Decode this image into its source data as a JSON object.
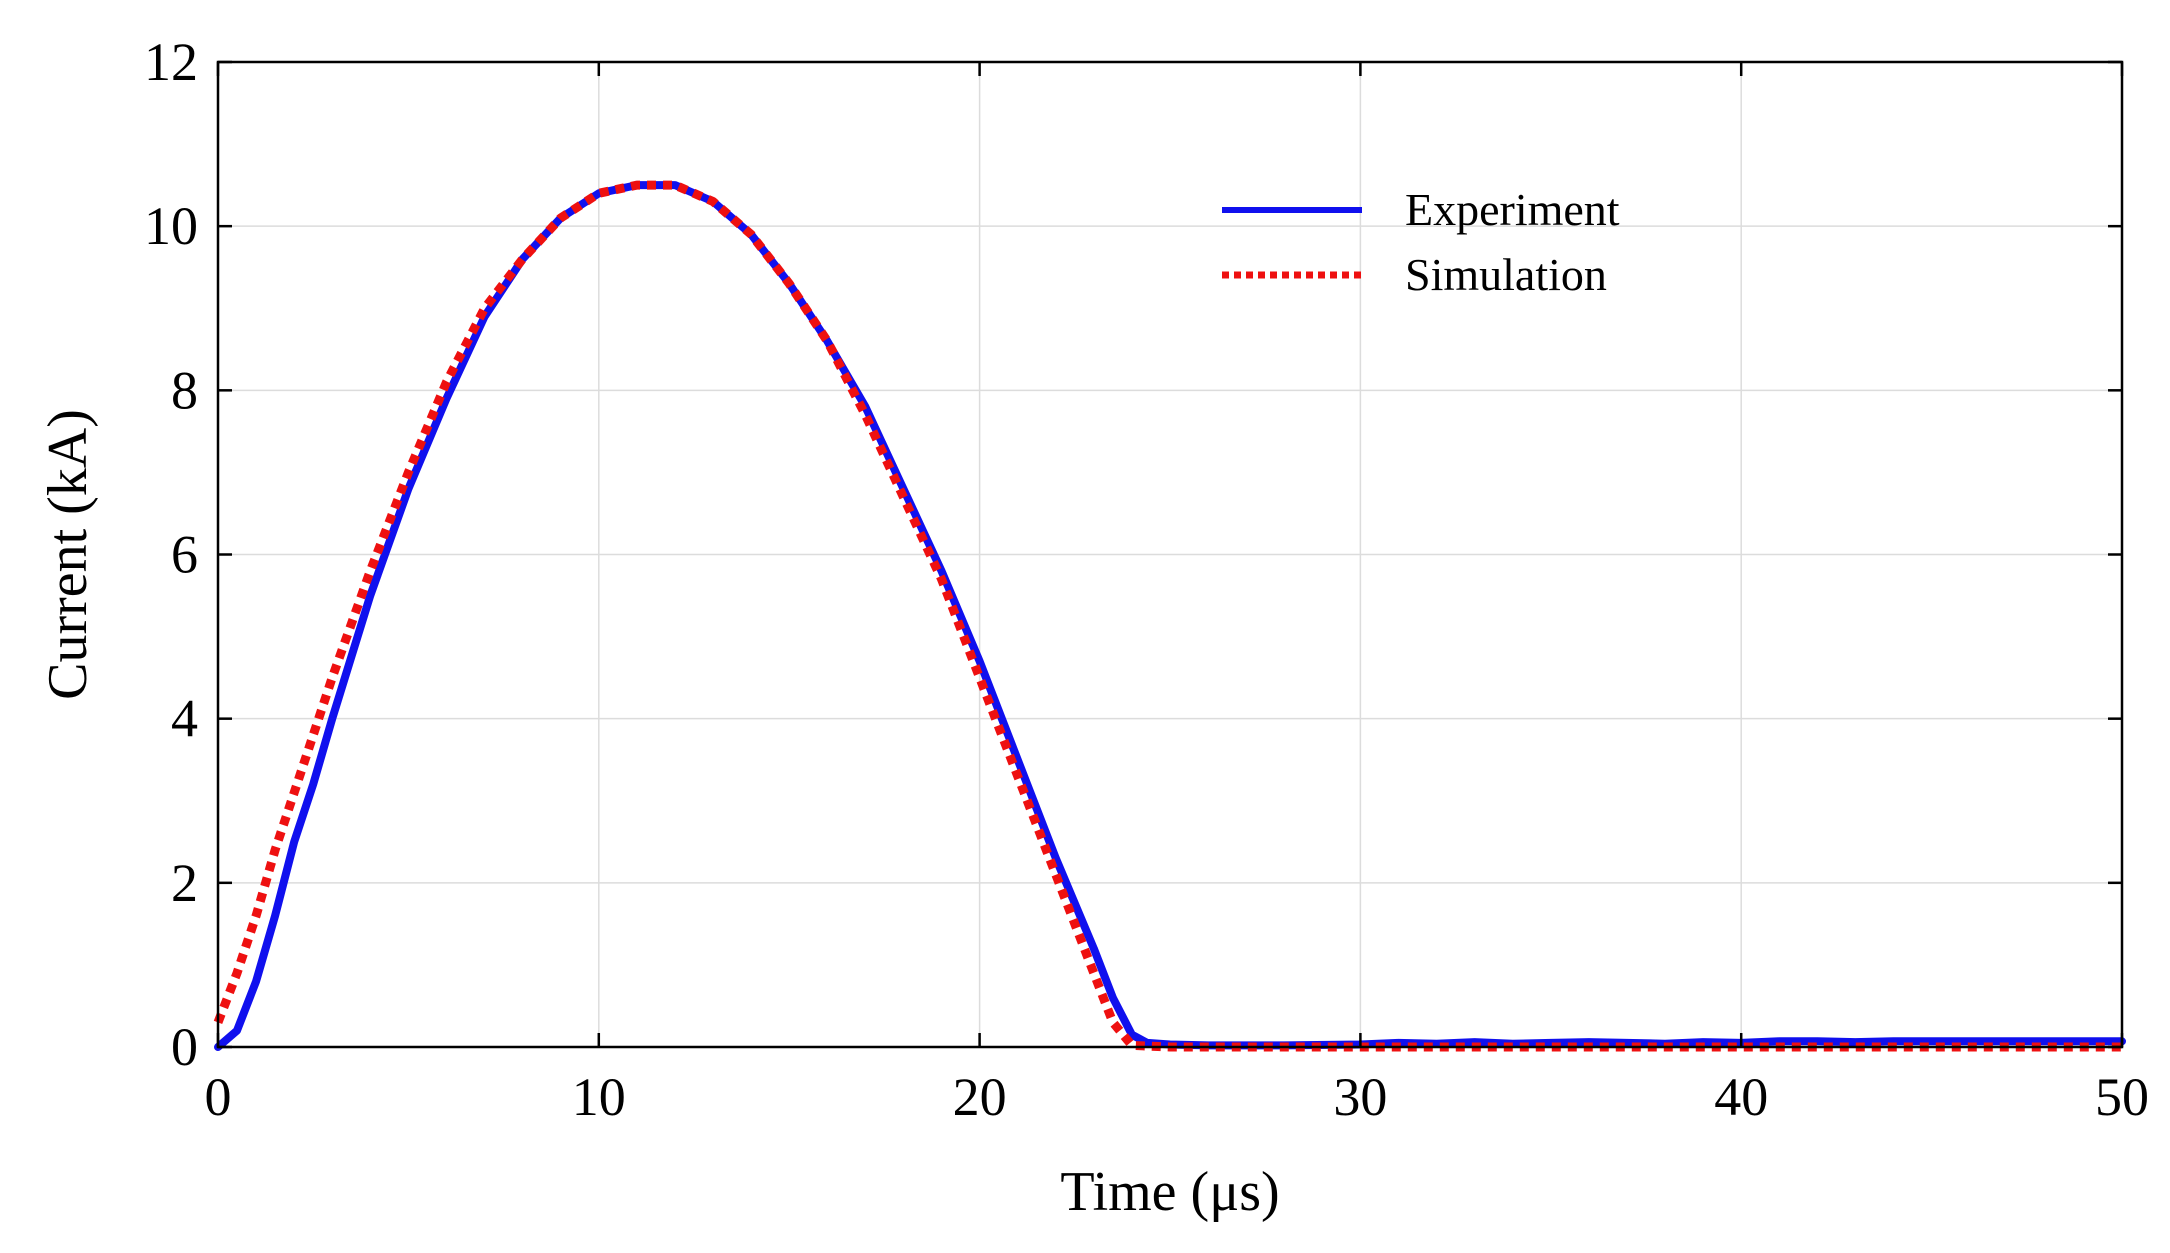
{
  "chart_data": {
    "type": "line",
    "title": "",
    "xlabel": "Time (μs)",
    "ylabel": "Current (kA)",
    "xlim": [
      0,
      50
    ],
    "ylim": [
      0,
      12
    ],
    "xticks": [
      0,
      10,
      20,
      30,
      40,
      50
    ],
    "yticks": [
      0,
      2,
      4,
      6,
      8,
      10,
      12
    ],
    "grid": true,
    "legend_position": "top-right",
    "series": [
      {
        "name": "Experiment",
        "color": "#1010ee",
        "style": "solid",
        "x": [
          0,
          0.5,
          1,
          1.5,
          2,
          2.5,
          3,
          4,
          5,
          6,
          7,
          8,
          9,
          10,
          11,
          12,
          13,
          14,
          15,
          16,
          17,
          18,
          19,
          20,
          21,
          22,
          23,
          23.5,
          24,
          24.4,
          25,
          26,
          28,
          30,
          31,
          32,
          33,
          34,
          35,
          36,
          37,
          38,
          39,
          40,
          41,
          42,
          43,
          44,
          45,
          46,
          47,
          48,
          49,
          50
        ],
        "y": [
          0,
          0.2,
          0.8,
          1.6,
          2.5,
          3.2,
          4.0,
          5.5,
          6.8,
          7.9,
          8.9,
          9.6,
          10.1,
          10.4,
          10.5,
          10.5,
          10.3,
          9.9,
          9.3,
          8.6,
          7.8,
          6.8,
          5.8,
          4.7,
          3.5,
          2.3,
          1.2,
          0.6,
          0.15,
          0.05,
          0.03,
          0.02,
          0.02,
          0.03,
          0.05,
          0.04,
          0.06,
          0.04,
          0.05,
          0.06,
          0.05,
          0.04,
          0.06,
          0.05,
          0.07,
          0.07,
          0.06,
          0.07,
          0.07,
          0.07,
          0.07,
          0.07,
          0.07,
          0.07
        ]
      },
      {
        "name": "Simulation",
        "color": "#ee1010",
        "style": "dotted",
        "x": [
          0,
          0.5,
          1,
          1.5,
          2,
          2.5,
          3,
          4,
          5,
          6,
          7,
          8,
          9,
          10,
          11,
          12,
          13,
          14,
          15,
          16,
          17,
          18,
          19,
          20,
          21,
          22,
          23,
          23.5,
          24,
          25,
          26,
          28,
          30,
          32,
          34,
          36,
          38,
          40,
          42,
          44,
          46,
          48,
          50
        ],
        "y": [
          0.3,
          0.9,
          1.6,
          2.4,
          3.1,
          3.8,
          4.5,
          5.8,
          7.0,
          8.1,
          9.0,
          9.6,
          10.1,
          10.4,
          10.5,
          10.5,
          10.3,
          9.9,
          9.3,
          8.6,
          7.7,
          6.7,
          5.7,
          4.5,
          3.3,
          2.1,
          0.9,
          0.3,
          0.02,
          0.0,
          0.0,
          0.0,
          0.0,
          0.0,
          0.0,
          0.0,
          0.0,
          0.0,
          0.0,
          0.0,
          0.0,
          0.0,
          0.0
        ]
      }
    ]
  }
}
